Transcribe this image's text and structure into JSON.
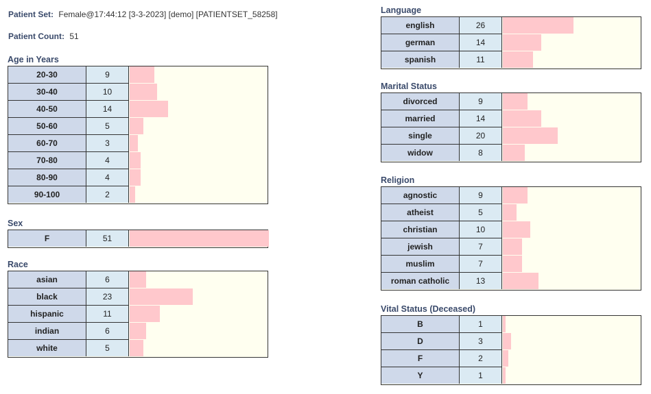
{
  "header": {
    "patient_set_label": "Patient Set:",
    "patient_set_value": "Female@17:44:12 [3-3-2023] [demo] [PATIENTSET_58258]",
    "patient_count_label": "Patient Count:",
    "patient_count_value": "51"
  },
  "colors": {
    "bar": "#ffc8cc",
    "category_cell": "#cfd9ea",
    "value_cell": "#dbeaf3",
    "chart_bg": "#fffff0",
    "heading": "#3a4a6b"
  },
  "chart_data": [
    {
      "type": "bar",
      "title": "Age in Years",
      "max": 51,
      "categories": [
        "20-30",
        "30-40",
        "40-50",
        "50-60",
        "60-70",
        "70-80",
        "80-90",
        "90-100"
      ],
      "values": [
        9,
        10,
        14,
        5,
        3,
        4,
        4,
        2
      ]
    },
    {
      "type": "bar",
      "title": "Sex",
      "max": 51,
      "categories": [
        "F"
      ],
      "values": [
        51
      ]
    },
    {
      "type": "bar",
      "title": "Race",
      "max": 51,
      "categories": [
        "asian",
        "black",
        "hispanic",
        "indian",
        "white"
      ],
      "values": [
        6,
        23,
        11,
        6,
        5
      ]
    },
    {
      "type": "bar",
      "title": "Language",
      "max": 51,
      "categories": [
        "english",
        "german",
        "spanish"
      ],
      "values": [
        26,
        14,
        11
      ]
    },
    {
      "type": "bar",
      "title": "Marital Status",
      "max": 51,
      "categories": [
        "divorced",
        "married",
        "single",
        "widow"
      ],
      "values": [
        9,
        14,
        20,
        8
      ]
    },
    {
      "type": "bar",
      "title": "Religion",
      "max": 51,
      "categories": [
        "agnostic",
        "atheist",
        "christian",
        "jewish",
        "muslim",
        "roman catholic"
      ],
      "values": [
        9,
        5,
        10,
        7,
        7,
        13
      ]
    },
    {
      "type": "bar",
      "title": "Vital Status (Deceased)",
      "max": 51,
      "categories": [
        "B",
        "D",
        "F",
        "Y"
      ],
      "values": [
        1,
        3,
        2,
        1
      ]
    }
  ]
}
